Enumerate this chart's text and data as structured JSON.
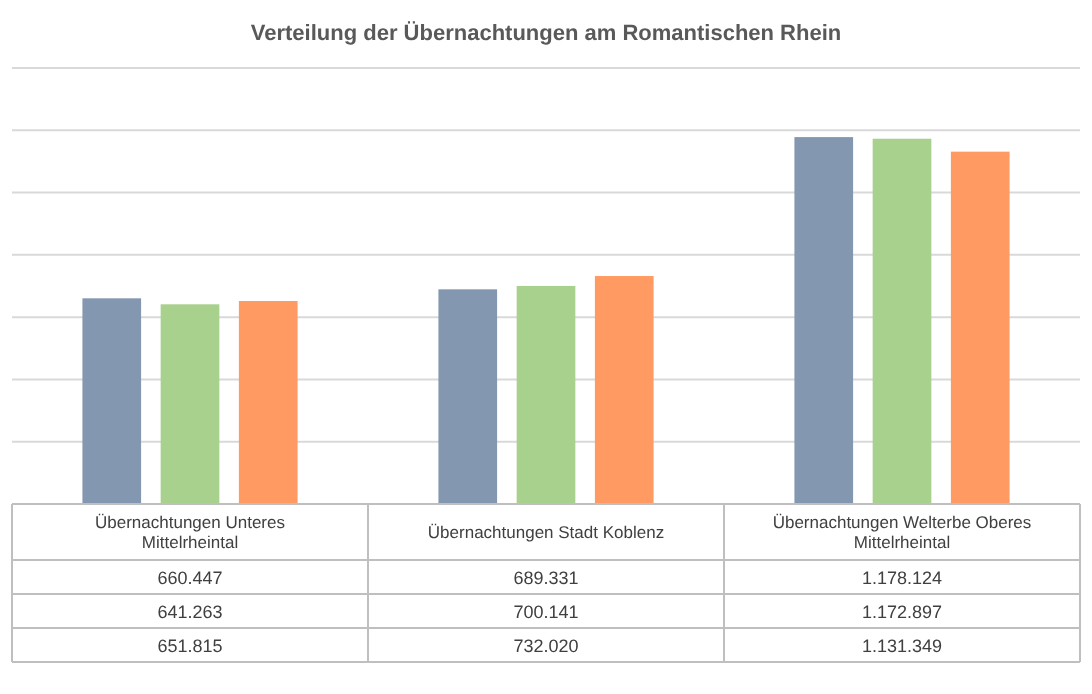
{
  "chart_data": {
    "type": "bar",
    "title": "Verteilung der Übernachtungen  am Romantischen Rhein",
    "categories": [
      "Übernachtungen Unteres Mittelrheintal",
      "Übernachtungen Stadt Koblenz",
      "Übernachtungen Welterbe Oberes Mittelrheintal"
    ],
    "series": [
      {
        "color": "#8497b0",
        "values": [
          660447,
          689331,
          1178124
        ],
        "value_labels": [
          "660.447",
          "689.331",
          "1.178.124"
        ]
      },
      {
        "color": "#a9d18e",
        "values": [
          641263,
          700141,
          1172897
        ],
        "value_labels": [
          "641.263",
          "700.141",
          "1.172.897"
        ]
      },
      {
        "color": "#ff9b62",
        "values": [
          651815,
          732020,
          1131349
        ],
        "value_labels": [
          "651.815",
          "732.020",
          "1.131.349"
        ]
      }
    ],
    "ylim": [
      0,
      1400000
    ],
    "yticks": [
      {
        "value": 0,
        "label": null
      },
      {
        "value": 200000,
        "label": null
      },
      {
        "value": 400000,
        "label": null
      },
      {
        "value": 600000,
        "label": null
      },
      {
        "value": 800000,
        "label": null
      },
      {
        "value": 1000000,
        "label": null
      },
      {
        "value": 1200000,
        "label": null
      },
      {
        "value": 1400000,
        "label": null
      }
    ],
    "tick_labels": "x",
    "grid": true
  }
}
